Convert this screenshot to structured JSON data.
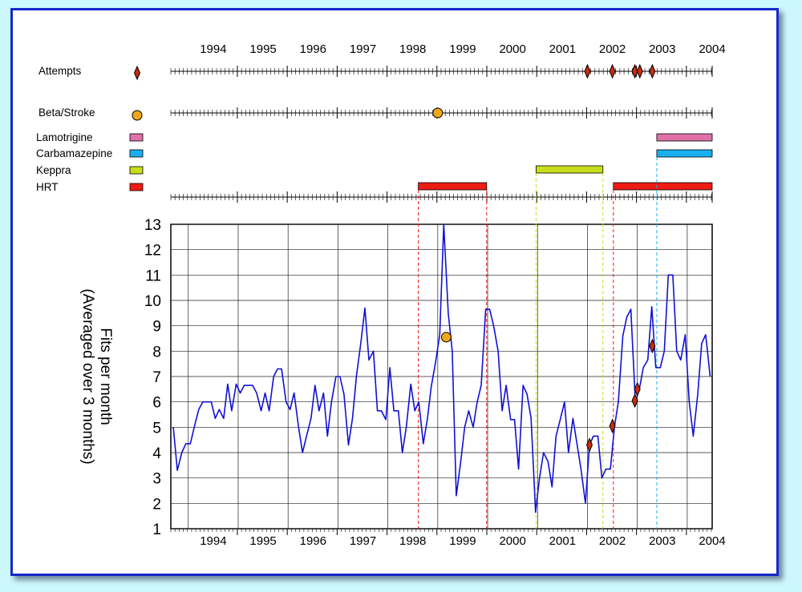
{
  "chart_data": {
    "type": "line",
    "title": "",
    "ylabel": "Fits per month\n(Averaged over 3 months)",
    "xlabel": "",
    "x_tick_labels": [
      "1994",
      "1995",
      "1996",
      "1997",
      "1998",
      "1999",
      "2000",
      "2001",
      "2002",
      "2003",
      "2004"
    ],
    "ylim": [
      1,
      13
    ],
    "y_ticks": [
      1,
      2,
      3,
      4,
      5,
      6,
      7,
      8,
      9,
      10,
      11,
      12,
      13
    ],
    "xlim": [
      1993.65,
      2004.5
    ],
    "grid": true,
    "colors": {
      "line": "#1010d8",
      "frame_border": "#1528c8",
      "background": "#ccf7fb",
      "lamotrigine": "#e070a8",
      "carbamazepine": "#1ab0f0",
      "keppra": "#c8de1a",
      "hrt": "#ee1c14",
      "marker_attempt": "#cc2a10",
      "marker_beta": "#f0a818"
    },
    "series": [
      {
        "points": [
          [
            1993.7,
            5.0
          ],
          [
            1993.78,
            3.3
          ],
          [
            1993.87,
            4.0
          ],
          [
            1993.95,
            4.35
          ],
          [
            1994.04,
            4.35
          ],
          [
            1994.12,
            5.0
          ],
          [
            1994.21,
            5.7
          ],
          [
            1994.29,
            6.0
          ],
          [
            1994.37,
            6.0
          ],
          [
            1994.46,
            6.0
          ],
          [
            1994.54,
            5.35
          ],
          [
            1994.62,
            5.7
          ],
          [
            1994.71,
            5.35
          ],
          [
            1994.79,
            6.7
          ],
          [
            1994.87,
            5.65
          ],
          [
            1994.96,
            6.7
          ],
          [
            1995.04,
            6.35
          ],
          [
            1995.12,
            6.65
          ],
          [
            1995.21,
            6.65
          ],
          [
            1995.29,
            6.65
          ],
          [
            1995.37,
            6.35
          ],
          [
            1995.46,
            5.65
          ],
          [
            1995.54,
            6.35
          ],
          [
            1995.62,
            5.65
          ],
          [
            1995.71,
            7.0
          ],
          [
            1995.79,
            7.3
          ],
          [
            1995.87,
            7.3
          ],
          [
            1995.96,
            6.0
          ],
          [
            1996.04,
            5.7
          ],
          [
            1996.12,
            6.35
          ],
          [
            1996.21,
            5.0
          ],
          [
            1996.29,
            4.0
          ],
          [
            1996.37,
            4.65
          ],
          [
            1996.46,
            5.35
          ],
          [
            1996.54,
            6.65
          ],
          [
            1996.62,
            5.65
          ],
          [
            1996.71,
            6.35
          ],
          [
            1996.79,
            4.65
          ],
          [
            1996.87,
            6.0
          ],
          [
            1996.96,
            7.0
          ],
          [
            1997.04,
            7.0
          ],
          [
            1997.12,
            6.3
          ],
          [
            1997.21,
            4.3
          ],
          [
            1997.29,
            5.35
          ],
          [
            1997.37,
            7.0
          ],
          [
            1997.46,
            8.35
          ],
          [
            1997.54,
            9.7
          ],
          [
            1997.62,
            7.65
          ],
          [
            1997.71,
            8.0
          ],
          [
            1997.79,
            5.65
          ],
          [
            1997.87,
            5.65
          ],
          [
            1997.96,
            5.3
          ],
          [
            1998.04,
            7.35
          ],
          [
            1998.12,
            5.65
          ],
          [
            1998.21,
            5.65
          ],
          [
            1998.29,
            4.0
          ],
          [
            1998.37,
            5.0
          ],
          [
            1998.46,
            6.7
          ],
          [
            1998.54,
            5.65
          ],
          [
            1998.62,
            6.0
          ],
          [
            1998.71,
            4.35
          ],
          [
            1998.79,
            5.3
          ],
          [
            1998.87,
            6.6
          ],
          [
            1998.96,
            7.6
          ],
          [
            1999.04,
            8.65
          ],
          [
            1999.12,
            13.0
          ],
          [
            1999.21,
            9.5
          ],
          [
            1999.29,
            8.0
          ],
          [
            1999.37,
            2.3
          ],
          [
            1999.46,
            3.65
          ],
          [
            1999.54,
            5.0
          ],
          [
            1999.62,
            5.65
          ],
          [
            1999.71,
            5.0
          ],
          [
            1999.79,
            6.0
          ],
          [
            1999.87,
            6.65
          ],
          [
            1999.96,
            9.65
          ],
          [
            2000.04,
            9.65
          ],
          [
            2000.12,
            9.0
          ],
          [
            2000.21,
            8.0
          ],
          [
            2000.29,
            5.65
          ],
          [
            2000.37,
            6.65
          ],
          [
            2000.46,
            5.3
          ],
          [
            2000.54,
            5.3
          ],
          [
            2000.62,
            3.35
          ],
          [
            2000.71,
            6.65
          ],
          [
            2000.79,
            6.3
          ],
          [
            2000.87,
            5.35
          ],
          [
            2000.96,
            1.65
          ],
          [
            2001.04,
            3.0
          ],
          [
            2001.12,
            4.0
          ],
          [
            2001.21,
            3.65
          ],
          [
            2001.29,
            2.65
          ],
          [
            2001.37,
            4.65
          ],
          [
            2001.46,
            5.35
          ],
          [
            2001.54,
            6.0
          ],
          [
            2001.62,
            4.0
          ],
          [
            2001.71,
            5.35
          ],
          [
            2001.79,
            4.35
          ],
          [
            2001.87,
            3.35
          ],
          [
            2001.96,
            2.0
          ],
          [
            2002.04,
            4.3
          ],
          [
            2002.12,
            4.65
          ],
          [
            2002.21,
            4.65
          ],
          [
            2002.29,
            3.0
          ],
          [
            2002.37,
            3.35
          ],
          [
            2002.46,
            3.35
          ],
          [
            2002.54,
            5.0
          ],
          [
            2002.62,
            6.0
          ],
          [
            2002.71,
            8.6
          ],
          [
            2002.79,
            9.35
          ],
          [
            2002.87,
            9.65
          ],
          [
            2002.96,
            6.0
          ],
          [
            2003.04,
            6.5
          ],
          [
            2003.12,
            7.35
          ],
          [
            2003.21,
            7.65
          ],
          [
            2003.29,
            9.75
          ],
          [
            2003.37,
            7.35
          ],
          [
            2003.46,
            7.35
          ],
          [
            2003.54,
            8.0
          ],
          [
            2003.62,
            11.0
          ],
          [
            2003.71,
            11.0
          ],
          [
            2003.79,
            8.0
          ],
          [
            2003.87,
            7.65
          ],
          [
            2003.96,
            8.65
          ],
          [
            2004.04,
            6.0
          ],
          [
            2004.12,
            4.65
          ],
          [
            2004.21,
            6.3
          ],
          [
            2004.29,
            8.3
          ],
          [
            2004.37,
            8.65
          ],
          [
            2004.46,
            7.0
          ]
        ]
      }
    ],
    "timelines": {
      "attempts": {
        "label": "Attempts",
        "events": [
          2002.0,
          2002.5,
          2002.95,
          2003.05,
          2003.3
        ]
      },
      "beta": {
        "label": "Beta/Stroke",
        "events": [
          1999.0
        ]
      }
    },
    "medications": [
      {
        "label": "Lamotrigine",
        "color_key": "lamotrigine",
        "periods": [
          [
            2003.39,
            2004.6
          ]
        ]
      },
      {
        "label": "Carbamazepine",
        "color_key": "carbamazepine",
        "periods": [
          [
            2003.39,
            2004.6
          ]
        ]
      },
      {
        "label": "Keppra",
        "color_key": "keppra",
        "periods": [
          [
            2000.97,
            2002.31
          ]
        ]
      },
      {
        "label": "HRT",
        "color_key": "hrt",
        "periods": [
          [
            1998.61,
            1999.98
          ],
          [
            2002.52,
            2004.6
          ]
        ]
      }
    ],
    "chart_markers": [
      {
        "kind": "beta",
        "x": 1999.17,
        "y": 8.55
      },
      {
        "kind": "attempt",
        "x": 2002.04,
        "y": 4.3
      },
      {
        "kind": "attempt",
        "x": 2002.5,
        "y": 5.05
      },
      {
        "kind": "attempt",
        "x": 2002.95,
        "y": 6.05
      },
      {
        "kind": "attempt",
        "x": 2003.0,
        "y": 6.5
      },
      {
        "kind": "attempt",
        "x": 2003.3,
        "y": 8.2
      }
    ],
    "dashed_lines": [
      {
        "x": 1998.61,
        "color_key": "hrt",
        "from": "hrt"
      },
      {
        "x": 1999.98,
        "color_key": "hrt",
        "from": "hrt"
      },
      {
        "x": 2002.52,
        "color_key": "hrt",
        "from": "hrt"
      },
      {
        "x": 2000.97,
        "color_key": "keppra",
        "from": "keppra"
      },
      {
        "x": 2002.31,
        "color_key": "keppra",
        "from": "keppra"
      },
      {
        "x": 2003.39,
        "color_key": "carbamazepine",
        "from": "carbamazepine"
      }
    ]
  }
}
